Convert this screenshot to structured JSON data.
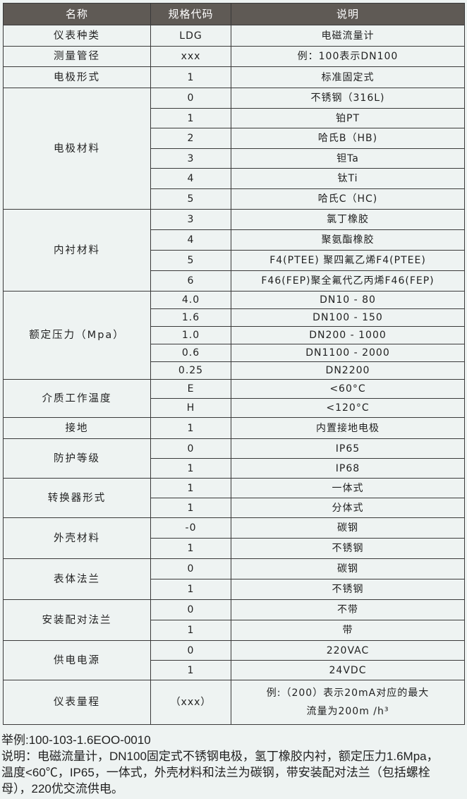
{
  "header": {
    "name": "名称",
    "code": "规格代码",
    "desc": "说明"
  },
  "groups": [
    {
      "name": "仪表种类",
      "rows": [
        {
          "code": "LDG",
          "desc": "电磁流量计"
        }
      ]
    },
    {
      "name": "测量管径",
      "rows": [
        {
          "code": "xxx",
          "desc": "例：100表示DN100"
        }
      ]
    },
    {
      "name": "电极形式",
      "rows": [
        {
          "code": "1",
          "desc": "标准固定式"
        }
      ]
    },
    {
      "name": "电极材料",
      "rows": [
        {
          "code": "0",
          "desc": "不锈钢（316L)"
        },
        {
          "code": "1",
          "desc": "铂PT"
        },
        {
          "code": "2",
          "desc": "哈氏B（HB)"
        },
        {
          "code": "3",
          "desc": "钽Ta"
        },
        {
          "code": "4",
          "desc": "钛Ti"
        },
        {
          "code": "5",
          "desc": "哈氏C（HC)"
        }
      ]
    },
    {
      "name": "内衬材料",
      "rows": [
        {
          "code": "3",
          "desc": "氯丁橡胶"
        },
        {
          "code": "4",
          "desc": "聚氨酯橡胶"
        },
        {
          "code": "5",
          "desc": "F4(PTEE) 聚四氟乙烯F4(PTEE)"
        },
        {
          "code": "6",
          "desc": "F46(FEP)聚全氟代乙丙烯F46(FEP)"
        }
      ]
    },
    {
      "name": "额定压力（Mpa）",
      "rows": [
        {
          "code": "4.0",
          "desc": "DN10 - 80"
        },
        {
          "code": "1.6",
          "desc": "DN100 - 150"
        },
        {
          "code": "1.0",
          "desc": "DN200 - 1000"
        },
        {
          "code": "0.6",
          "desc": "DN1100 - 2000"
        },
        {
          "code": "0.25",
          "desc": "DN2200"
        }
      ]
    },
    {
      "name": "介质工作温度",
      "rows": [
        {
          "code": "E",
          "desc": "<60°C"
        },
        {
          "code": "H",
          "desc": "<120°C"
        }
      ]
    },
    {
      "name": "接地",
      "rows": [
        {
          "code": "1",
          "desc": "内置接地电极"
        }
      ]
    },
    {
      "name": "防护等级",
      "rows": [
        {
          "code": "0",
          "desc": "IP65"
        },
        {
          "code": "1",
          "desc": "IP68"
        }
      ]
    },
    {
      "name": "转换器形式",
      "rows": [
        {
          "code": "1",
          "desc": "一体式"
        },
        {
          "code": "1",
          "desc": "分体式"
        }
      ]
    },
    {
      "name": "外壳材料",
      "rows": [
        {
          "code": "-0",
          "desc": "碳钢"
        },
        {
          "code": "1",
          "desc": "不锈钢"
        }
      ]
    },
    {
      "name": "表体法兰",
      "rows": [
        {
          "code": "0",
          "desc": "碳钢"
        },
        {
          "code": "1",
          "desc": "不锈钢"
        }
      ]
    },
    {
      "name": "安装配对法兰",
      "rows": [
        {
          "code": "0",
          "desc": "不带"
        },
        {
          "code": "1",
          "desc": "带"
        }
      ]
    },
    {
      "name": "供电电源",
      "rows": [
        {
          "code": "0",
          "desc": "220VAC"
        },
        {
          "code": "1",
          "desc": "24VDC"
        }
      ]
    },
    {
      "name": "仪表量程",
      "rows": [
        {
          "code": "（xxx）",
          "desc": "例:（200）表示20mA对应的最大",
          "desc2": "流量为200m  /h³"
        }
      ]
    }
  ],
  "notes": {
    "example": "举例:100-103-1.6EOO-0010",
    "lines": [
      "说明：电磁流量计，DN100固定式不锈钢电极，氢丁橡胶内衬，额定压力1.6Mpa，",
      "温度<60℃，IP65，一体式，外壳材料和法兰为碳钢，带安装配对法兰（包括螺栓",
      "母），220优交流供电。"
    ]
  },
  "colors": {
    "header_bg": "#5f5a55",
    "page_bg": "#eef3f2",
    "border": "#3a3a3a"
  }
}
